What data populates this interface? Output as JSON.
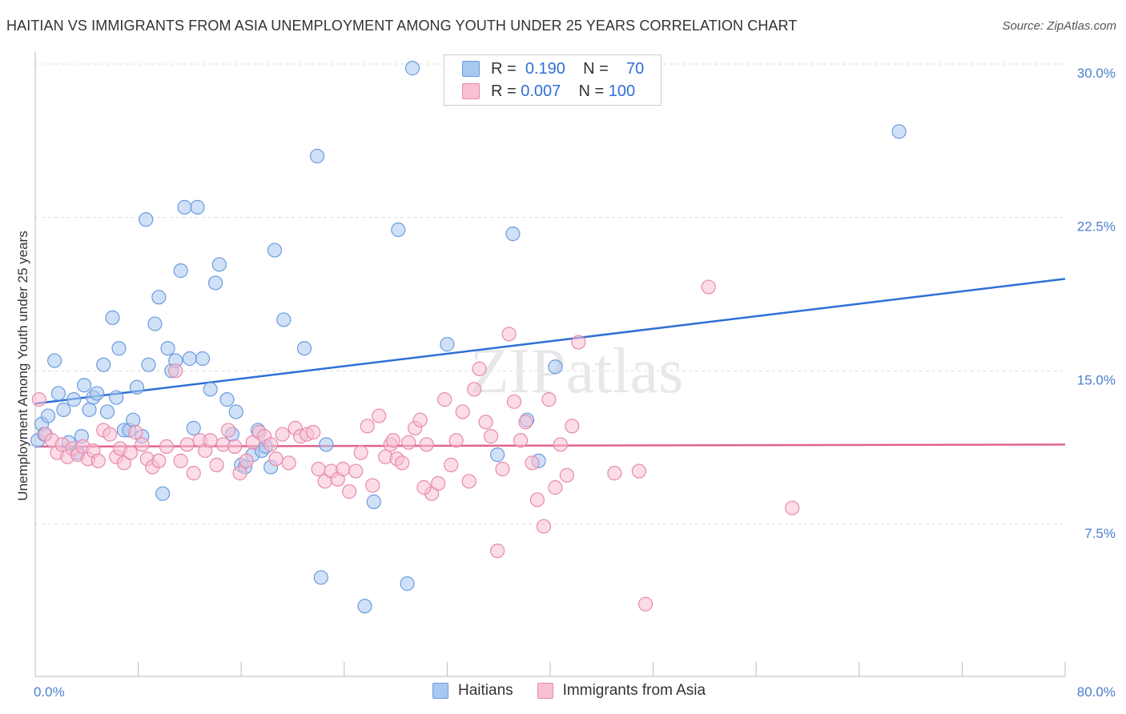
{
  "title": "HAITIAN VS IMMIGRANTS FROM ASIA UNEMPLOYMENT AMONG YOUTH UNDER 25 YEARS CORRELATION CHART",
  "source": "Source: ZipAtlas.com",
  "watermark": "ZIPatlas",
  "legend_box": {
    "rows": [
      {
        "r_label": "R =",
        "r_value": "0.190",
        "n_label": "N =",
        "n_value": "70",
        "color": "#a9c8f0",
        "border": "#6a9be0"
      },
      {
        "r_label": "R =",
        "r_value": "0.007",
        "n_label": "N =",
        "n_value": "100",
        "color": "#f8c0d4",
        "border": "#e88aaa"
      }
    ]
  },
  "bottom_legend": [
    {
      "label": "Haitians",
      "color": "#a9c8f0",
      "border": "#6a9be0"
    },
    {
      "label": "Immigrants from Asia",
      "color": "#f8c0d4",
      "border": "#e88aaa"
    }
  ],
  "chart_data": {
    "type": "scatter",
    "title": "HAITIAN VS IMMIGRANTS FROM ASIA UNEMPLOYMENT AMONG YOUTH UNDER 25 YEARS CORRELATION CHART",
    "xlabel": "",
    "ylabel": "Unemployment Among Youth under 25 years",
    "xlim": [
      0,
      80
    ],
    "ylim": [
      0,
      31
    ],
    "x_tick_labels": [
      "0.0%",
      "80.0%"
    ],
    "y_ticks": [
      7.5,
      15.0,
      22.5,
      30.0
    ],
    "y_tick_labels": [
      "7.5%",
      "15.0%",
      "22.5%",
      "30.0%"
    ],
    "grid": "horizontal dashed",
    "series": [
      {
        "name": "Haitians",
        "color": "#6a9be0",
        "fill": "#a9c8f0",
        "trend": [
          [
            0,
            13.4
          ],
          [
            80,
            19.5
          ]
        ],
        "points": [
          [
            0.2,
            11.6
          ],
          [
            0.5,
            12.4
          ],
          [
            0.7,
            11.9
          ],
          [
            1.0,
            12.8
          ],
          [
            1.5,
            15.5
          ],
          [
            1.8,
            13.9
          ],
          [
            2.2,
            13.1
          ],
          [
            2.6,
            11.5
          ],
          [
            3.0,
            13.6
          ],
          [
            3.3,
            11.0
          ],
          [
            3.6,
            11.8
          ],
          [
            3.8,
            14.3
          ],
          [
            4.2,
            13.1
          ],
          [
            4.5,
            13.7
          ],
          [
            4.8,
            13.9
          ],
          [
            5.3,
            15.3
          ],
          [
            5.6,
            13.0
          ],
          [
            6.0,
            17.6
          ],
          [
            6.3,
            13.7
          ],
          [
            6.5,
            16.1
          ],
          [
            6.9,
            12.1
          ],
          [
            7.3,
            12.1
          ],
          [
            7.6,
            12.6
          ],
          [
            7.9,
            14.2
          ],
          [
            8.3,
            11.8
          ],
          [
            8.6,
            22.4
          ],
          [
            8.8,
            15.3
          ],
          [
            9.3,
            17.3
          ],
          [
            9.6,
            18.6
          ],
          [
            9.9,
            9.0
          ],
          [
            10.3,
            16.1
          ],
          [
            10.6,
            15.0
          ],
          [
            10.9,
            15.5
          ],
          [
            11.3,
            19.9
          ],
          [
            11.6,
            23.0
          ],
          [
            12.0,
            15.6
          ],
          [
            12.3,
            12.2
          ],
          [
            12.6,
            23.0
          ],
          [
            13.0,
            15.6
          ],
          [
            13.6,
            14.1
          ],
          [
            14.0,
            19.3
          ],
          [
            14.3,
            20.2
          ],
          [
            14.9,
            13.6
          ],
          [
            15.3,
            11.9
          ],
          [
            15.6,
            13.0
          ],
          [
            16.0,
            10.4
          ],
          [
            16.3,
            10.3
          ],
          [
            16.9,
            10.9
          ],
          [
            17.3,
            12.1
          ],
          [
            17.6,
            11.1
          ],
          [
            17.9,
            11.3
          ],
          [
            18.3,
            10.3
          ],
          [
            18.6,
            20.9
          ],
          [
            19.3,
            17.5
          ],
          [
            20.9,
            16.1
          ],
          [
            21.9,
            25.5
          ],
          [
            22.2,
            4.9
          ],
          [
            22.6,
            11.4
          ],
          [
            25.6,
            3.5
          ],
          [
            26.3,
            8.6
          ],
          [
            28.2,
            21.9
          ],
          [
            28.9,
            4.6
          ],
          [
            29.3,
            29.8
          ],
          [
            32.0,
            16.3
          ],
          [
            35.9,
            10.9
          ],
          [
            37.1,
            21.7
          ],
          [
            38.2,
            12.6
          ],
          [
            39.1,
            10.6
          ],
          [
            40.4,
            15.2
          ],
          [
            67.1,
            26.7
          ]
        ]
      },
      {
        "name": "Immigrants from Asia",
        "color": "#e88aaa",
        "fill": "#f8c0d4",
        "trend": [
          [
            0,
            11.3
          ],
          [
            80,
            11.4
          ]
        ],
        "points": [
          [
            0.3,
            13.6
          ],
          [
            0.8,
            11.9
          ],
          [
            1.3,
            11.6
          ],
          [
            1.7,
            11.0
          ],
          [
            2.1,
            11.4
          ],
          [
            2.5,
            10.8
          ],
          [
            2.9,
            11.2
          ],
          [
            3.3,
            10.9
          ],
          [
            3.7,
            11.3
          ],
          [
            4.1,
            10.7
          ],
          [
            4.5,
            11.1
          ],
          [
            4.9,
            10.6
          ],
          [
            5.3,
            12.1
          ],
          [
            5.8,
            11.9
          ],
          [
            6.3,
            10.8
          ],
          [
            6.6,
            11.2
          ],
          [
            6.9,
            10.5
          ],
          [
            7.4,
            11.0
          ],
          [
            7.8,
            12.0
          ],
          [
            8.3,
            11.4
          ],
          [
            8.7,
            10.7
          ],
          [
            9.1,
            10.3
          ],
          [
            9.6,
            10.6
          ],
          [
            10.2,
            11.3
          ],
          [
            10.9,
            15.0
          ],
          [
            11.3,
            10.6
          ],
          [
            11.8,
            11.4
          ],
          [
            12.3,
            10.0
          ],
          [
            12.8,
            11.6
          ],
          [
            13.2,
            11.1
          ],
          [
            13.6,
            11.6
          ],
          [
            14.1,
            10.4
          ],
          [
            14.6,
            11.4
          ],
          [
            15.0,
            12.1
          ],
          [
            15.5,
            11.3
          ],
          [
            15.9,
            10.0
          ],
          [
            16.4,
            10.6
          ],
          [
            16.9,
            11.5
          ],
          [
            17.4,
            12.0
          ],
          [
            17.8,
            11.8
          ],
          [
            18.3,
            11.4
          ],
          [
            18.7,
            10.7
          ],
          [
            19.2,
            11.9
          ],
          [
            19.7,
            10.5
          ],
          [
            20.2,
            12.2
          ],
          [
            20.6,
            11.8
          ],
          [
            21.1,
            11.9
          ],
          [
            21.6,
            12.0
          ],
          [
            22.0,
            10.2
          ],
          [
            22.5,
            9.6
          ],
          [
            23.0,
            10.1
          ],
          [
            23.5,
            9.7
          ],
          [
            23.9,
            10.2
          ],
          [
            24.4,
            9.1
          ],
          [
            24.9,
            10.1
          ],
          [
            25.3,
            11.0
          ],
          [
            25.8,
            12.3
          ],
          [
            26.2,
            9.4
          ],
          [
            26.7,
            12.8
          ],
          [
            27.2,
            10.8
          ],
          [
            27.6,
            11.4
          ],
          [
            28.1,
            10.7
          ],
          [
            28.5,
            10.5
          ],
          [
            29.0,
            11.5
          ],
          [
            29.5,
            12.2
          ],
          [
            29.9,
            12.6
          ],
          [
            30.4,
            11.4
          ],
          [
            30.8,
            9.0
          ],
          [
            31.3,
            9.5
          ],
          [
            31.8,
            13.6
          ],
          [
            32.3,
            10.4
          ],
          [
            32.7,
            11.6
          ],
          [
            33.2,
            13.0
          ],
          [
            33.7,
            9.6
          ],
          [
            34.1,
            14.1
          ],
          [
            34.5,
            15.1
          ],
          [
            35.0,
            12.5
          ],
          [
            35.4,
            11.8
          ],
          [
            35.9,
            6.2
          ],
          [
            36.3,
            10.2
          ],
          [
            36.8,
            16.8
          ],
          [
            37.2,
            13.5
          ],
          [
            37.7,
            11.6
          ],
          [
            38.1,
            12.5
          ],
          [
            38.6,
            10.5
          ],
          [
            39.0,
            8.7
          ],
          [
            39.5,
            7.4
          ],
          [
            39.9,
            13.6
          ],
          [
            40.4,
            9.3
          ],
          [
            40.8,
            11.4
          ],
          [
            41.3,
            9.9
          ],
          [
            41.7,
            12.3
          ],
          [
            42.2,
            16.4
          ],
          [
            45.0,
            10.0
          ],
          [
            46.9,
            10.1
          ],
          [
            47.4,
            3.6
          ],
          [
            52.3,
            19.1
          ],
          [
            58.8,
            8.3
          ],
          [
            30.2,
            9.3
          ],
          [
            27.8,
            11.6
          ]
        ]
      }
    ]
  }
}
